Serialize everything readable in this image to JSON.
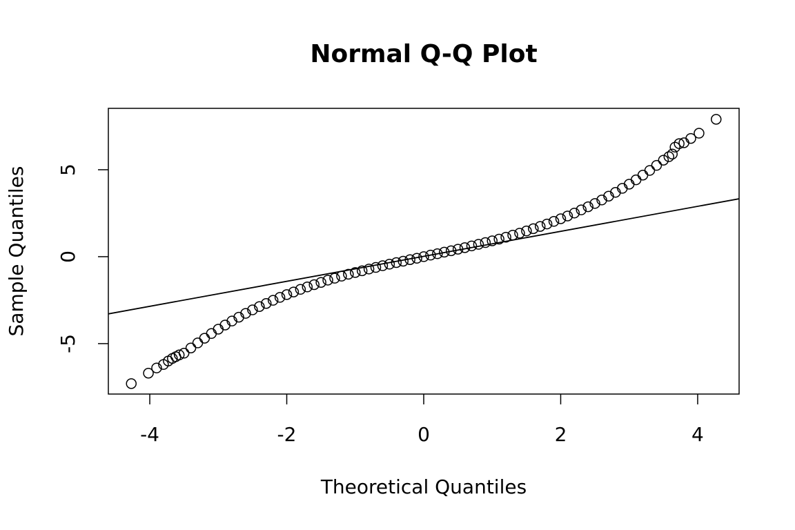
{
  "chart_data": {
    "type": "scatter",
    "title": "Normal Q-Q Plot",
    "x_label": "Theoretical Quantiles",
    "y_label": "Sample Quantiles",
    "x": [
      -4.27,
      -4.02,
      -3.9,
      -3.8,
      -3.73,
      -3.67,
      -3.62,
      -3.57,
      -3.5,
      -3.4,
      -3.3,
      -3.2,
      -3.1,
      -3.0,
      -2.9,
      -2.8,
      -2.7,
      -2.6,
      -2.5,
      -2.4,
      -2.3,
      -2.2,
      -2.1,
      -2.0,
      -1.9,
      -1.8,
      -1.7,
      -1.6,
      -1.5,
      -1.4,
      -1.3,
      -1.2,
      -1.1,
      -1.0,
      -0.9,
      -0.8,
      -0.7,
      -0.6,
      -0.5,
      -0.4,
      -0.3,
      -0.2,
      -0.1,
      0,
      0.1,
      0.2,
      0.3,
      0.4,
      0.5,
      0.6,
      0.7,
      0.8,
      0.9,
      1.0,
      1.1,
      1.2,
      1.3,
      1.4,
      1.5,
      1.6,
      1.7,
      1.8,
      1.9,
      2.0,
      2.1,
      2.2,
      2.3,
      2.4,
      2.5,
      2.6,
      2.7,
      2.8,
      2.9,
      3.0,
      3.1,
      3.2,
      3.3,
      3.4,
      3.5,
      3.58,
      3.63,
      3.67,
      3.73,
      3.8,
      3.9,
      4.02,
      4.27
    ],
    "values": [
      -7.3,
      -6.7,
      -6.4,
      -6.2,
      -6.0,
      -5.85,
      -5.75,
      -5.65,
      -5.55,
      -5.25,
      -4.96,
      -4.69,
      -4.42,
      -4.17,
      -3.93,
      -3.7,
      -3.48,
      -3.26,
      -3.06,
      -2.87,
      -2.69,
      -2.51,
      -2.34,
      -2.18,
      -2.03,
      -1.88,
      -1.74,
      -1.61,
      -1.48,
      -1.35,
      -1.24,
      -1.12,
      -1.01,
      -0.91,
      -0.81,
      -0.71,
      -0.62,
      -0.52,
      -0.43,
      -0.34,
      -0.26,
      -0.17,
      -0.09,
      0,
      0.09,
      0.17,
      0.26,
      0.34,
      0.43,
      0.52,
      0.62,
      0.71,
      0.81,
      0.91,
      1.01,
      1.12,
      1.24,
      1.35,
      1.48,
      1.61,
      1.74,
      1.88,
      2.03,
      2.18,
      2.34,
      2.51,
      2.69,
      2.87,
      3.06,
      3.26,
      3.48,
      3.7,
      3.93,
      4.17,
      4.42,
      4.69,
      4.96,
      5.25,
      5.55,
      5.75,
      5.9,
      6.3,
      6.5,
      6.55,
      6.8,
      7.1,
      7.9
    ],
    "color": "#000000",
    "reference_line": {
      "x": [
        -4.605,
        4.605
      ],
      "values": [
        -3.29,
        3.33
      ]
    },
    "xlim": [
      -4.605,
      4.605
    ],
    "ylim": [
      -7.9,
      8.53
    ],
    "xticks": [
      -4,
      -2,
      0,
      2,
      4
    ],
    "yticks": [
      -5,
      0,
      5
    ]
  }
}
